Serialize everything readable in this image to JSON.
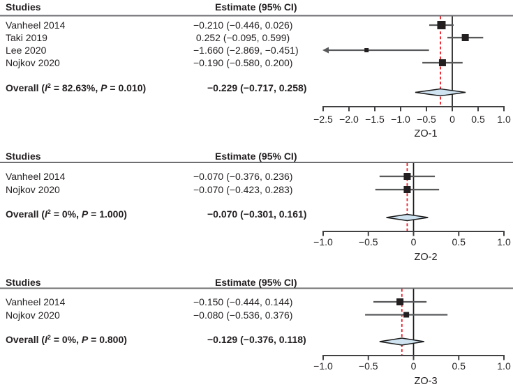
{
  "colors": {
    "text": "#231f20",
    "header_rule": "#6d6e71",
    "ci_line": "#58595b",
    "marker": "#231f20",
    "zero_line": "#1a1a1a",
    "overall_ref_line": "#ec1c24",
    "diamond_fill": "#cfe3f1",
    "diamond_stroke": "#1a1a1a",
    "axis": "#414042"
  },
  "chart_data": [
    {
      "type": "forest",
      "outcome_label": "ZO-1",
      "studies_header": "Studies",
      "estimate_header": "Estimate (95% CI)",
      "studies": [
        {
          "name": "Vanheel 2014",
          "estimate_text": "−0.210 (−0.446, 0.026)",
          "est": -0.21,
          "lo": -0.446,
          "hi": 0.026,
          "marker_size_px": 12
        },
        {
          "name": "Taki 2019",
          "estimate_text": " 0.252 (−0.095, 0.599)",
          "est": 0.252,
          "lo": -0.095,
          "hi": 0.599,
          "marker_size_px": 10
        },
        {
          "name": "Lee 2020",
          "estimate_text": "−1.660 (−2.869, −0.451)",
          "est": -1.66,
          "lo": -2.869,
          "hi": -0.451,
          "marker_size_px": 6
        },
        {
          "name": "Nojkov 2020",
          "estimate_text": "−0.190 (−0.580, 0.200)",
          "est": -0.19,
          "lo": -0.58,
          "hi": 0.2,
          "marker_size_px": 10
        }
      ],
      "overall": {
        "label_prefix": "Overall (",
        "i_symbol": "I",
        "i_sup": "2",
        "i_rest": " = 82.63%, ",
        "p_symbol": "P",
        "p_rest": " = 0.010)",
        "i_squared": "82.63%",
        "p_value": "0.010",
        "estimate_text": "−0.229 (−0.717, 0.258)",
        "est": -0.229,
        "lo": -0.717,
        "hi": 0.258
      },
      "axis": {
        "min": -2.5,
        "max": 1.0,
        "tick_values": [
          -2.5,
          -2.0,
          -1.5,
          -1.0,
          -0.5,
          0,
          0.5,
          1.0
        ],
        "tick_labels": [
          "−2.5",
          "−2.0",
          "−1.5",
          "−1.0",
          "−0.5",
          "0",
          "0.5",
          "1.0"
        ],
        "title": "ZO-1",
        "zero_line_at": 0,
        "overall_ref_line_at": -0.229
      }
    },
    {
      "type": "forest",
      "outcome_label": "ZO-2",
      "studies_header": "Studies",
      "estimate_header": "Estimate (95% CI)",
      "studies": [
        {
          "name": "Vanheel 2014",
          "estimate_text": "−0.070 (−0.376, 0.236)",
          "est": -0.07,
          "lo": -0.376,
          "hi": 0.236,
          "marker_size_px": 10
        },
        {
          "name": "Nojkov 2020",
          "estimate_text": "−0.070 (−0.423, 0.283)",
          "est": -0.07,
          "lo": -0.423,
          "hi": 0.283,
          "marker_size_px": 10
        }
      ],
      "overall": {
        "label_prefix": "Overall (",
        "i_symbol": "I",
        "i_sup": "2",
        "i_rest": " = 0%, ",
        "p_symbol": "P",
        "p_rest": " = 1.000)",
        "i_squared": "0%",
        "p_value": "1.000",
        "estimate_text": "−0.070 (−0.301, 0.161)",
        "est": -0.07,
        "lo": -0.301,
        "hi": 0.161
      },
      "axis": {
        "min": -1.0,
        "max": 1.0,
        "tick_values": [
          -1.0,
          -0.5,
          0,
          0.5,
          1.0
        ],
        "tick_labels": [
          "−1.0",
          "−0.5",
          "0",
          "0.5",
          "1.0"
        ],
        "title": "ZO-2",
        "zero_line_at": 0,
        "overall_ref_line_at": -0.07
      }
    },
    {
      "type": "forest",
      "outcome_label": "ZO-3",
      "studies_header": "Studies",
      "estimate_header": "Estimate (95% CI)",
      "studies": [
        {
          "name": "Vanheel 2014",
          "estimate_text": "−0.150 (−0.444, 0.144)",
          "est": -0.15,
          "lo": -0.444,
          "hi": 0.144,
          "marker_size_px": 10
        },
        {
          "name": "Nojkov 2020",
          "estimate_text": "−0.080 (−0.536, 0.376)",
          "est": -0.08,
          "lo": -0.536,
          "hi": 0.376,
          "marker_size_px": 8
        }
      ],
      "overall": {
        "label_prefix": "Overall (",
        "i_symbol": "I",
        "i_sup": "2",
        "i_rest": " = 0%, ",
        "p_symbol": "P",
        "p_rest": " = 0.800)",
        "i_squared": "0%",
        "p_value": "0.800",
        "estimate_text": "−0.129 (−0.376, 0.118)",
        "est": -0.129,
        "lo": -0.376,
        "hi": 0.118
      },
      "axis": {
        "min": -1.0,
        "max": 1.0,
        "tick_values": [
          -1.0,
          -0.5,
          0,
          0.5,
          1.0
        ],
        "tick_labels": [
          "−1.0",
          "−0.5",
          "0",
          "0.5",
          "1.0"
        ],
        "title": "ZO-3",
        "zero_line_at": 0,
        "overall_ref_line_at": -0.129
      }
    }
  ]
}
